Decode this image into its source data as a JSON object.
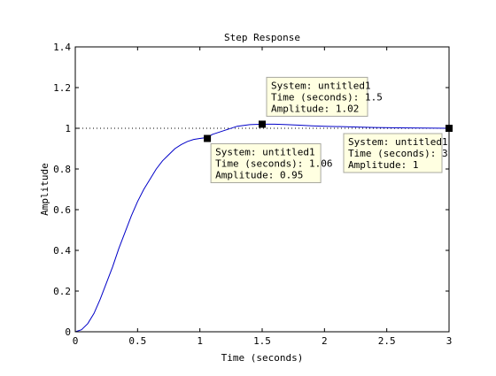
{
  "chart_data": {
    "type": "line",
    "title": "Step Response",
    "xlabel": "Time (seconds)",
    "ylabel": "Amplitude",
    "xlim": [
      0,
      3
    ],
    "ylim": [
      0,
      1.4
    ],
    "grid": false,
    "x_ticks": [
      0,
      0.5,
      1,
      1.5,
      2,
      2.5,
      3
    ],
    "x_tick_labels": [
      "0",
      "0.5",
      "1",
      "1.5",
      "2",
      "2.5",
      "3"
    ],
    "y_ticks": [
      0,
      0.2,
      0.4,
      0.6,
      0.8,
      1,
      1.2,
      1.4
    ],
    "y_tick_labels": [
      "0",
      "0.2",
      "0.4",
      "0.6",
      "0.8",
      "1",
      "1.2",
      "1.4"
    ],
    "reference_line": {
      "y": 1,
      "style": "dotted"
    },
    "series": [
      {
        "color": "#0000c8",
        "x": [
          0,
          0.05,
          0.1,
          0.15,
          0.2,
          0.25,
          0.3,
          0.35,
          0.4,
          0.45,
          0.5,
          0.55,
          0.6,
          0.65,
          0.7,
          0.75,
          0.8,
          0.85,
          0.9,
          0.95,
          1.0,
          1.06,
          1.1,
          1.2,
          1.3,
          1.4,
          1.5,
          1.6,
          1.7,
          1.8,
          1.9,
          2.0,
          2.2,
          2.4,
          2.6,
          2.8,
          3.0
        ],
        "y": [
          0,
          0.01,
          0.04,
          0.09,
          0.16,
          0.24,
          0.32,
          0.41,
          0.49,
          0.57,
          0.64,
          0.7,
          0.75,
          0.8,
          0.84,
          0.87,
          0.9,
          0.92,
          0.935,
          0.945,
          0.95,
          0.955,
          0.97,
          0.99,
          1.01,
          1.018,
          1.02,
          1.02,
          1.018,
          1.015,
          1.012,
          1.01,
          1.007,
          1.004,
          1.002,
          1.001,
          1.0
        ]
      }
    ],
    "datatips": [
      {
        "x": 1.06,
        "y": 0.95,
        "lines": [
          "System: untitled1",
          "Time (seconds): 1.06",
          "Amplitude: 0.95"
        ]
      },
      {
        "x": 1.5,
        "y": 1.02,
        "lines": [
          "System: untitled1",
          "Time (seconds): 1.5",
          "Amplitude: 1.02"
        ]
      },
      {
        "x": 3,
        "y": 1,
        "lines": [
          "System: untitled1",
          "Time (seconds): 3",
          "Amplitude: 1"
        ]
      }
    ]
  }
}
